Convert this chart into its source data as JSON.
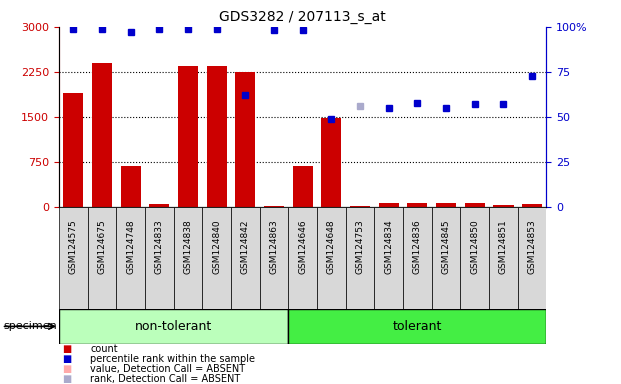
{
  "title": "GDS3282 / 207113_s_at",
  "samples": [
    "GSM124575",
    "GSM124675",
    "GSM124748",
    "GSM124833",
    "GSM124838",
    "GSM124840",
    "GSM124842",
    "GSM124863",
    "GSM124646",
    "GSM124648",
    "GSM124753",
    "GSM124834",
    "GSM124836",
    "GSM124845",
    "GSM124850",
    "GSM124851",
    "GSM124853"
  ],
  "count_values": [
    1900,
    2400,
    680,
    60,
    2350,
    2350,
    2250,
    30,
    680,
    1480,
    30,
    70,
    70,
    80,
    80,
    40,
    60
  ],
  "count_absent": [
    false,
    false,
    false,
    false,
    false,
    false,
    false,
    false,
    false,
    false,
    false,
    false,
    false,
    false,
    false,
    false,
    false
  ],
  "rank_values": [
    99,
    99,
    97,
    99,
    99,
    99,
    62,
    98,
    98,
    49,
    56,
    55,
    58,
    55,
    57,
    57,
    73
  ],
  "rank_absent": [
    false,
    false,
    false,
    false,
    false,
    false,
    false,
    false,
    false,
    false,
    true,
    false,
    false,
    false,
    false,
    false,
    false
  ],
  "non_tolerant_count": 8,
  "tolerant_count": 9,
  "left_ylim": [
    0,
    3000
  ],
  "right_ylim": [
    0,
    100
  ],
  "left_yticks": [
    0,
    750,
    1500,
    2250,
    3000
  ],
  "right_yticks": [
    0,
    25,
    50,
    75,
    100
  ],
  "bar_color": "#cc0000",
  "bar_absent_color": "#ffaaaa",
  "dot_color": "#0000cc",
  "dot_absent_color": "#aaaacc",
  "bg_color": "#d8d8d8",
  "non_tolerant_color": "#bbffbb",
  "tolerant_color": "#44ee44",
  "legend_items": [
    "count",
    "percentile rank within the sample",
    "value, Detection Call = ABSENT",
    "rank, Detection Call = ABSENT"
  ],
  "legend_colors": [
    "#cc0000",
    "#0000cc",
    "#ffaaaa",
    "#aaaacc"
  ]
}
